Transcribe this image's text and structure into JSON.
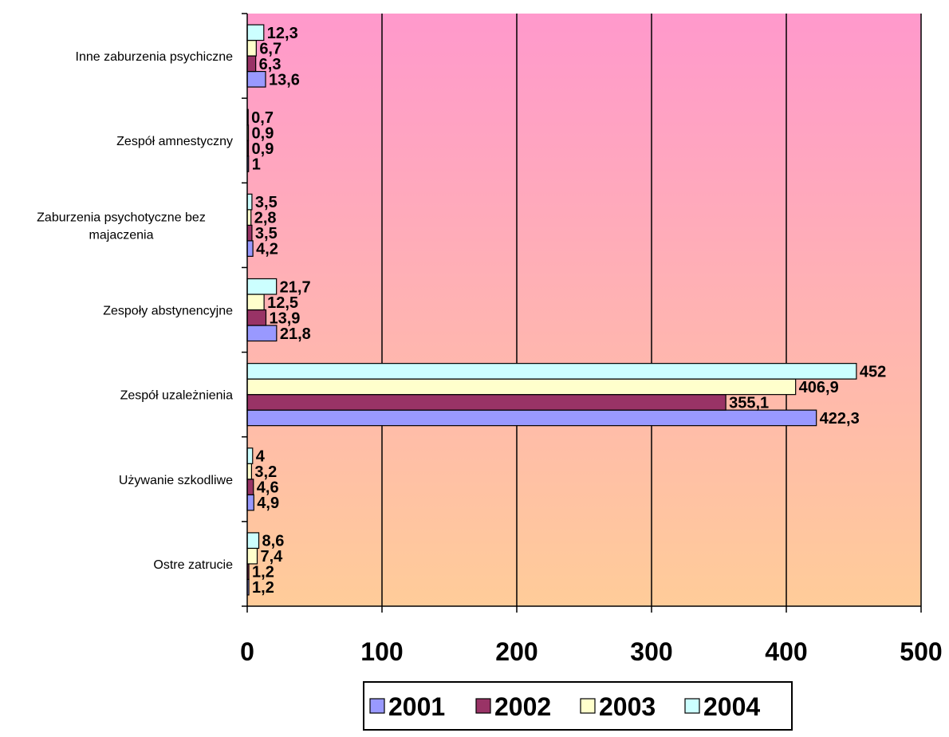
{
  "chart_data": {
    "type": "bar",
    "orientation": "horizontal",
    "categories": [
      "Inne zaburzenia psychiczne",
      "Zespół amnestyczny",
      "Zaburzenia psychotyczne bez\nmajaczenia",
      "Zespoły abstynencyjne",
      "Zespół uzależnienia",
      "Używanie szkodliwe",
      "Ostre zatrucie"
    ],
    "series": [
      {
        "name": "2001",
        "color": "#9999ff",
        "values": [
          13.6,
          1,
          4.2,
          21.8,
          422.3,
          4.9,
          1.2
        ],
        "labels": [
          "13,6",
          "1",
          "4,2",
          "21,8",
          "422,3",
          "4,9",
          "1,2"
        ]
      },
      {
        "name": "2002",
        "color": "#993366",
        "values": [
          6.3,
          0.9,
          3.5,
          13.9,
          355.1,
          4.6,
          1.2
        ],
        "labels": [
          "6,3",
          "0,9",
          "3,5",
          "13,9",
          "355,1",
          "4,6",
          "1,2"
        ]
      },
      {
        "name": "2003",
        "color": "#ffffcc",
        "values": [
          6.7,
          0.9,
          2.8,
          12.5,
          406.9,
          3.2,
          7.4
        ],
        "labels": [
          "6,7",
          "0,9",
          "2,8",
          "12,5",
          "406,9",
          "3,2",
          "7,4"
        ]
      },
      {
        "name": "2004",
        "color": "#ccffff",
        "values": [
          12.3,
          0.7,
          3.5,
          21.7,
          452,
          4,
          8.6
        ],
        "labels": [
          "12,3",
          "0,7",
          "3,5",
          "21,7",
          "452",
          "4",
          "8,6"
        ]
      }
    ],
    "xlim": [
      0,
      500
    ],
    "xticks": [
      0,
      100,
      200,
      300,
      400,
      500
    ],
    "xtick_labels": [
      "0",
      "100",
      "200",
      "300",
      "400",
      "500"
    ],
    "grid": true,
    "legend_position": "bottom",
    "background_gradient": [
      "#ff99cc",
      "#ffcc99"
    ]
  }
}
